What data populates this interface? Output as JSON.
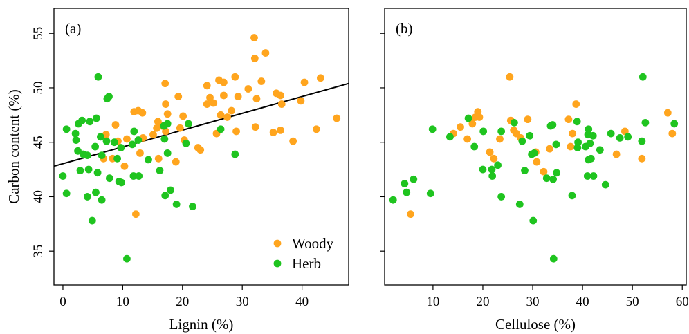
{
  "colors": {
    "woody": "#ffa51e",
    "herb": "#1fc41f",
    "fit_line": "#000000"
  },
  "ylabel": "Carbon content (%)",
  "legend": {
    "placement": "bottom-right",
    "entries": [
      {
        "label": "Woody",
        "series": "woody"
      },
      {
        "label": "Herb",
        "series": "herb"
      }
    ]
  },
  "chart_data": [
    {
      "type": "scatter",
      "panel_label": "(a)",
      "xlabel": "Lignin (%)",
      "ylabel": "Carbon content (%)",
      "xlim": [
        -1.5,
        47.8
      ],
      "ylim": [
        31.9,
        57.3
      ],
      "xticks": [
        0,
        10,
        20,
        30,
        40
      ],
      "yticks": [
        35,
        40,
        45,
        50,
        55
      ],
      "legend": "bottom-right",
      "fit_line": {
        "x": [
          -1.5,
          47.8
        ],
        "y": [
          42.8,
          50.4
        ]
      },
      "series": [
        {
          "name": "Woody",
          "color_key": "woody",
          "points": [
            [
              32.0,
              54.6
            ],
            [
              33.9,
              53.2
            ],
            [
              32.1,
              52.7
            ],
            [
              43.1,
              50.9
            ],
            [
              28.8,
              51.0
            ],
            [
              26.1,
              50.7
            ],
            [
              33.2,
              50.6
            ],
            [
              26.9,
              50.5
            ],
            [
              24.1,
              50.2
            ],
            [
              17.1,
              50.4
            ],
            [
              40.4,
              50.5
            ],
            [
              31.0,
              49.9
            ],
            [
              35.7,
              49.5
            ],
            [
              26.9,
              49.3
            ],
            [
              29.3,
              49.2
            ],
            [
              24.6,
              49.1
            ],
            [
              36.4,
              49.3
            ],
            [
              19.3,
              49.2
            ],
            [
              39.8,
              48.8
            ],
            [
              32.4,
              49.0
            ],
            [
              25.2,
              48.6
            ],
            [
              24.1,
              48.5
            ],
            [
              17.2,
              48.5
            ],
            [
              36.6,
              48.5
            ],
            [
              17.5,
              47.6
            ],
            [
              28.2,
              47.9
            ],
            [
              26.4,
              47.5
            ],
            [
              27.5,
              47.3
            ],
            [
              45.8,
              47.2
            ],
            [
              12.6,
              47.9
            ],
            [
              13.3,
              47.7
            ],
            [
              11.9,
              47.8
            ],
            [
              15.9,
              46.9
            ],
            [
              15.7,
              46.3
            ],
            [
              16.6,
              46.5
            ],
            [
              17.2,
              46.0
            ],
            [
              25.7,
              45.8
            ],
            [
              29.0,
              46.0
            ],
            [
              32.2,
              46.4
            ],
            [
              36.4,
              46.1
            ],
            [
              35.2,
              45.9
            ],
            [
              38.5,
              45.1
            ],
            [
              42.4,
              46.2
            ],
            [
              15.1,
              45.7
            ],
            [
              13.4,
              45.4
            ],
            [
              12.9,
              44.0
            ],
            [
              10.7,
              45.3
            ],
            [
              8.8,
              46.6
            ],
            [
              9.2,
              45.1
            ],
            [
              7.2,
              45.7
            ],
            [
              6.8,
              43.5
            ],
            [
              8.3,
              43.5
            ],
            [
              10.3,
              42.8
            ],
            [
              20.3,
              45.2
            ],
            [
              22.6,
              44.5
            ],
            [
              20.1,
              47.4
            ],
            [
              18.9,
              43.2
            ],
            [
              16.0,
              43.5
            ],
            [
              12.2,
              38.4
            ],
            [
              19.6,
              46.3
            ],
            [
              23.0,
              44.3
            ]
          ]
        },
        {
          "name": "Herb",
          "color_key": "herb",
          "points": [
            [
              5.9,
              51.0
            ],
            [
              7.4,
              49.0
            ],
            [
              7.7,
              49.2
            ],
            [
              0.6,
              46.2
            ],
            [
              3.2,
              47.0
            ],
            [
              2.6,
              46.7
            ],
            [
              4.5,
              46.9
            ],
            [
              5.6,
              47.2
            ],
            [
              6.3,
              45.5
            ],
            [
              2.1,
              45.8
            ],
            [
              2.2,
              45.2
            ],
            [
              7.3,
              45.1
            ],
            [
              8.6,
              45.0
            ],
            [
              9.7,
              44.5
            ],
            [
              11.9,
              46.0
            ],
            [
              12.6,
              45.2
            ],
            [
              17.5,
              46.7
            ],
            [
              16.9,
              46.5
            ],
            [
              21.0,
              46.7
            ],
            [
              26.4,
              46.2
            ],
            [
              17.0,
              45.3
            ],
            [
              11.6,
              44.8
            ],
            [
              2.5,
              44.2
            ],
            [
              3.4,
              43.9
            ],
            [
              4.1,
              43.8
            ],
            [
              5.4,
              44.6
            ],
            [
              6.5,
              43.8
            ],
            [
              9.1,
              43.5
            ],
            [
              14.3,
              43.4
            ],
            [
              16.2,
              42.4
            ],
            [
              17.5,
              44.0
            ],
            [
              20.6,
              44.9
            ],
            [
              2.9,
              42.4
            ],
            [
              4.3,
              42.5
            ],
            [
              5.8,
              42.2
            ],
            [
              7.8,
              41.7
            ],
            [
              9.4,
              41.4
            ],
            [
              9.8,
              41.3
            ],
            [
              11.8,
              41.9
            ],
            [
              12.7,
              41.9
            ],
            [
              4.1,
              40.0
            ],
            [
              5.5,
              40.4
            ],
            [
              6.5,
              39.7
            ],
            [
              0.0,
              41.9
            ],
            [
              0.6,
              40.3
            ],
            [
              17.1,
              40.1
            ],
            [
              18.0,
              40.6
            ],
            [
              19.0,
              39.3
            ],
            [
              21.7,
              39.1
            ],
            [
              28.8,
              43.9
            ],
            [
              4.9,
              37.8
            ],
            [
              10.7,
              34.3
            ]
          ]
        }
      ]
    },
    {
      "type": "scatter",
      "panel_label": "(b)",
      "xlabel": "Cellulose (%)",
      "ylabel": "",
      "xlim": [
        0.3,
        60.8
      ],
      "ylim": [
        31.9,
        57.3
      ],
      "xticks": [
        10,
        20,
        30,
        40,
        50,
        60
      ],
      "yticks": [
        35,
        40,
        45,
        50,
        55
      ],
      "series": [
        {
          "name": "Woody",
          "color_key": "woody",
          "points": [
            [
              25.4,
              51.0
            ],
            [
              38.7,
              48.5
            ],
            [
              57.1,
              47.7
            ],
            [
              19.0,
              47.8
            ],
            [
              18.5,
              47.3
            ],
            [
              19.3,
              47.3
            ],
            [
              25.6,
              47.0
            ],
            [
              29.0,
              47.1
            ],
            [
              37.2,
              47.1
            ],
            [
              17.9,
              46.7
            ],
            [
              15.5,
              46.4
            ],
            [
              26.2,
              46.1
            ],
            [
              48.5,
              46.0
            ],
            [
              14.1,
              45.8
            ],
            [
              16.9,
              45.3
            ],
            [
              23.4,
              45.3
            ],
            [
              26.7,
              45.8
            ],
            [
              27.6,
              45.4
            ],
            [
              58.0,
              45.8
            ],
            [
              37.6,
              44.6
            ],
            [
              38.0,
              45.8
            ],
            [
              21.4,
              44.1
            ],
            [
              33.4,
              44.4
            ],
            [
              30.6,
              44.1
            ],
            [
              30.8,
              43.2
            ],
            [
              32.2,
              42.3
            ],
            [
              46.8,
              43.9
            ],
            [
              22.2,
              43.5
            ],
            [
              51.9,
              43.5
            ],
            [
              5.5,
              38.4
            ]
          ]
        },
        {
          "name": "Herb",
          "color_key": "herb",
          "points": [
            [
              52.1,
              51.0
            ],
            [
              17.1,
              47.2
            ],
            [
              26.3,
              46.8
            ],
            [
              38.9,
              46.9
            ],
            [
              52.6,
              46.8
            ],
            [
              58.4,
              46.7
            ],
            [
              9.9,
              46.2
            ],
            [
              34.0,
              46.6
            ],
            [
              33.6,
              46.5
            ],
            [
              41.2,
              46.2
            ],
            [
              20.1,
              46.0
            ],
            [
              23.7,
              46.0
            ],
            [
              47.5,
              45.4
            ],
            [
              13.4,
              45.5
            ],
            [
              29.4,
              45.6
            ],
            [
              41.1,
              45.7
            ],
            [
              42.1,
              45.6
            ],
            [
              39.1,
              45.0
            ],
            [
              51.9,
              45.1
            ],
            [
              18.3,
              44.6
            ],
            [
              39.0,
              44.5
            ],
            [
              45.7,
              45.8
            ],
            [
              49.1,
              45.5
            ],
            [
              27.9,
              45.1
            ],
            [
              41.5,
              44.9
            ],
            [
              43.5,
              44.3
            ],
            [
              34.7,
              44.8
            ],
            [
              40.6,
              44.6
            ],
            [
              41.7,
              43.5
            ],
            [
              29.8,
              43.9
            ],
            [
              30.3,
              44.0
            ],
            [
              41.2,
              43.4
            ],
            [
              23.0,
              42.9
            ],
            [
              20.0,
              42.5
            ],
            [
              21.8,
              42.5
            ],
            [
              28.4,
              42.4
            ],
            [
              32.8,
              41.7
            ],
            [
              34.1,
              41.6
            ],
            [
              34.8,
              42.2
            ],
            [
              41.0,
              41.9
            ],
            [
              44.6,
              41.1
            ],
            [
              21.9,
              41.9
            ],
            [
              42.2,
              41.9
            ],
            [
              4.3,
              41.2
            ],
            [
              6.1,
              41.6
            ],
            [
              4.7,
              40.4
            ],
            [
              9.5,
              40.3
            ],
            [
              23.7,
              40.0
            ],
            [
              37.9,
              40.1
            ],
            [
              2.0,
              39.7
            ],
            [
              27.4,
              39.3
            ],
            [
              30.1,
              37.8
            ],
            [
              34.2,
              34.3
            ]
          ]
        }
      ]
    }
  ]
}
